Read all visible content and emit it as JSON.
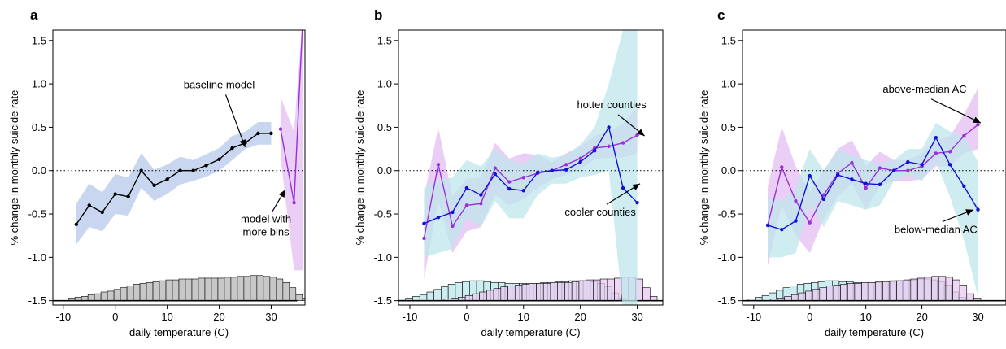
{
  "figure": {
    "colors": {
      "black": "#000000",
      "purple": "#9b30d9",
      "blue": "#1010d8",
      "blue_band": "#b7c8ea",
      "purple_band": "#e3bdf2",
      "cyan_band": "#bfe6ec",
      "gray_hist": "#c8c8c8",
      "cyan_hist": "#cdeef0",
      "purple_hist": "#e8c9f2",
      "overlap_hist": "#c9c8ec"
    }
  },
  "chart_data": [
    {
      "type": "line",
      "panel_label": "a",
      "xlabel": "daily temperature (C)",
      "ylabel": "% change in monthly suicide rate",
      "xlim": [
        -12,
        36.5
      ],
      "ylim": [
        -1.55,
        1.62
      ],
      "xticks": [
        "-10",
        "0",
        "10",
        "20",
        "30"
      ],
      "yticks": [
        "-1.5",
        "-1.0",
        "-0.5",
        "0.0",
        "0.5",
        "1.0",
        "1.5"
      ],
      "reference_line": 0,
      "series": [
        {
          "x": [
            -7.5,
            -5,
            -2.5,
            0,
            2.5,
            5,
            7.5,
            10,
            12.5,
            15,
            17.5,
            20,
            22.5,
            25,
            27.5,
            30
          ],
          "y": [
            -0.62,
            -0.4,
            -0.48,
            -0.27,
            -0.3,
            0.0,
            -0.17,
            -0.1,
            0.0,
            0.0,
            0.06,
            0.13,
            0.26,
            0.32,
            0.43,
            0.43
          ],
          "ci_lower": [
            -0.85,
            -0.65,
            -0.7,
            -0.5,
            -0.52,
            -0.2,
            -0.35,
            -0.27,
            -0.16,
            -0.12,
            -0.07,
            0.0,
            0.12,
            0.25,
            0.3,
            0.3
          ],
          "ci_upper": [
            -0.38,
            -0.15,
            -0.25,
            -0.04,
            -0.08,
            0.2,
            0.01,
            0.07,
            0.16,
            0.12,
            0.19,
            0.26,
            0.4,
            0.45,
            0.56,
            0.56
          ],
          "color": "black",
          "band_color": "blue_band"
        },
        {
          "x": [
            31.8,
            34.4,
            36.2
          ],
          "y": [
            0.48,
            -0.37,
            1.9
          ],
          "ci_lower": [
            0.15,
            -1.15,
            -1.15
          ],
          "ci_upper": [
            0.85,
            0.45,
            1.9
          ],
          "color": "purple",
          "band_color": "purple_band"
        }
      ],
      "histograms": [
        {
          "x_start": -9,
          "bin_width": 1.25,
          "heights": [
            0.03,
            0.04,
            0.05,
            0.07,
            0.08,
            0.1,
            0.11,
            0.13,
            0.15,
            0.17,
            0.19,
            0.2,
            0.21,
            0.22,
            0.23,
            0.24,
            0.24,
            0.25,
            0.25,
            0.25,
            0.26,
            0.26,
            0.26,
            0.26,
            0.27,
            0.27,
            0.28,
            0.28,
            0.29,
            0.29,
            0.28,
            0.27,
            0.25,
            0.21,
            0.15,
            0.07,
            0.03
          ],
          "fill": "gray_hist"
        }
      ],
      "hist_baseline_x_end": 35,
      "annotations": [
        {
          "text": "baseline model",
          "tx": 20,
          "ty": 0.95,
          "ax": 25,
          "ay": 0.27
        },
        {
          "text": "model with",
          "text2": "more bins",
          "tx": 29,
          "ty": -0.6,
          "ax": 32.7,
          "ay": -0.22
        }
      ]
    },
    {
      "type": "line",
      "panel_label": "b",
      "xlabel": "daily temperature (C)",
      "ylabel": "% change in monthly suicide rate",
      "xlim": [
        -12,
        34.5
      ],
      "ylim": [
        -1.55,
        1.62
      ],
      "xticks": [
        "-10",
        "0",
        "10",
        "20",
        "30"
      ],
      "yticks": [
        "-1.5",
        "-1.0",
        "-0.5",
        "0.0",
        "0.5",
        "1.0",
        "1.5"
      ],
      "reference_line": 0,
      "series": [
        {
          "x": [
            -7.5,
            -5,
            -2.5,
            0,
            2.5,
            5,
            7.5,
            10,
            12.5,
            15,
            17.5,
            20,
            22.5,
            25,
            27.5,
            30
          ],
          "y": [
            -0.78,
            0.07,
            -0.64,
            -0.4,
            -0.38,
            0.03,
            -0.13,
            -0.08,
            -0.03,
            0.0,
            0.07,
            0.14,
            0.26,
            0.28,
            0.32,
            0.41
          ],
          "ci_lower": [
            -1.25,
            -0.35,
            -0.95,
            -0.7,
            -0.65,
            -0.28,
            -0.4,
            -0.33,
            -0.2,
            -0.1,
            -0.05,
            0.02,
            0.13,
            0.15,
            0.15,
            0.2
          ],
          "ci_upper": [
            -0.3,
            0.5,
            -0.3,
            -0.1,
            -0.08,
            0.32,
            0.14,
            0.2,
            0.18,
            0.1,
            0.2,
            0.28,
            0.4,
            0.45,
            0.55,
            0.72
          ],
          "color": "purple",
          "band_color": "purple_band"
        },
        {
          "x": [
            -7.5,
            -5,
            -2.5,
            0,
            2.5,
            5,
            7.5,
            10,
            12.5,
            15,
            17.5,
            20,
            22.5,
            25,
            27.5,
            30
          ],
          "y": [
            -0.61,
            -0.54,
            -0.48,
            -0.2,
            -0.28,
            -0.04,
            -0.21,
            -0.23,
            -0.02,
            0.0,
            0.01,
            0.1,
            0.23,
            0.5,
            -0.2,
            -0.37
          ],
          "ci_lower": [
            -1.0,
            -0.95,
            -0.9,
            -0.55,
            -0.65,
            -0.35,
            -0.55,
            -0.55,
            -0.28,
            -0.15,
            -0.15,
            -0.08,
            -0.05,
            0.0,
            -1.6,
            -1.6
          ],
          "ci_upper": [
            -0.2,
            -0.1,
            -0.08,
            0.12,
            0.05,
            0.25,
            0.12,
            0.08,
            0.2,
            0.15,
            0.18,
            0.3,
            0.5,
            1.0,
            1.62,
            1.62
          ],
          "color": "blue",
          "band_color": "cyan_band"
        }
      ],
      "histograms": [
        {
          "x_start": -12,
          "bin_width": 1.25,
          "heights": [
            0.02,
            0.03,
            0.05,
            0.07,
            0.1,
            0.13,
            0.16,
            0.19,
            0.21,
            0.22,
            0.23,
            0.23,
            0.22,
            0.21,
            0.21,
            0.2,
            0.2,
            0.2,
            0.2,
            0.2,
            0.21,
            0.21,
            0.22,
            0.22,
            0.23,
            0.23,
            0.23,
            0.22,
            0.2,
            0.16,
            0.09,
            0.03
          ],
          "fill": "cyan_hist"
        },
        {
          "x_start": -4,
          "bin_width": 1.25,
          "heights": [
            0.02,
            0.03,
            0.04,
            0.06,
            0.08,
            0.1,
            0.12,
            0.14,
            0.16,
            0.17,
            0.18,
            0.19,
            0.2,
            0.2,
            0.2,
            0.21,
            0.21,
            0.21,
            0.22,
            0.23,
            0.24,
            0.24,
            0.25,
            0.25,
            0.26,
            0.27,
            0.27,
            0.25,
            0.15,
            0.05
          ],
          "fill": "purple_hist"
        }
      ],
      "hist_baseline_x_end": 34.5,
      "annotations": [
        {
          "text": "hotter counties",
          "tx": 25.5,
          "ty": 0.72,
          "ax": 31.3,
          "ay": 0.4
        },
        {
          "text": "cooler counties",
          "tx": 23.5,
          "ty": -0.52,
          "ax": 30.5,
          "ay": -0.15
        }
      ]
    },
    {
      "type": "line",
      "panel_label": "c",
      "xlabel": "daily temperature (C)",
      "ylabel": "% change in monthly suicide rate",
      "xlim": [
        -12,
        35
      ],
      "ylim": [
        -1.55,
        1.62
      ],
      "xticks": [
        "-10",
        "0",
        "10",
        "20",
        "30"
      ],
      "yticks": [
        "-1.5",
        "-1.0",
        "-0.5",
        "0.0",
        "0.5",
        "1.0",
        "1.5"
      ],
      "reference_line": 0,
      "series": [
        {
          "x": [
            -7.5,
            -5,
            -2.5,
            0,
            2.5,
            5,
            7.5,
            10,
            12.5,
            15,
            17.5,
            20,
            22.5,
            25,
            27.5,
            30
          ],
          "y": [
            -0.63,
            0.04,
            -0.35,
            -0.6,
            -0.28,
            -0.03,
            0.09,
            -0.2,
            0.03,
            0.0,
            0.0,
            0.05,
            0.2,
            0.22,
            0.4,
            0.53
          ],
          "ci_lower": [
            -1.1,
            -0.4,
            -0.75,
            -0.95,
            -0.55,
            -0.3,
            -0.15,
            -0.45,
            -0.18,
            -0.12,
            -0.12,
            -0.1,
            0.05,
            0.05,
            0.2,
            0.25
          ],
          "ci_upper": [
            -0.18,
            0.5,
            0.05,
            -0.25,
            0.0,
            0.25,
            0.35,
            0.05,
            0.22,
            0.12,
            0.12,
            0.2,
            0.35,
            0.4,
            0.65,
            0.95
          ],
          "color": "purple",
          "band_color": "purple_band"
        },
        {
          "x": [
            -7.5,
            -5,
            -2.5,
            0,
            2.5,
            5,
            7.5,
            10,
            12.5,
            15,
            17.5,
            20,
            22.5,
            25,
            27.5,
            30
          ],
          "y": [
            -0.63,
            -0.68,
            -0.58,
            -0.06,
            -0.33,
            -0.05,
            -0.1,
            -0.15,
            -0.16,
            0.0,
            0.1,
            0.07,
            0.38,
            0.07,
            -0.18,
            -0.45
          ],
          "ci_lower": [
            -1.0,
            -1.0,
            -0.95,
            -0.4,
            -0.65,
            -0.35,
            -0.4,
            -0.45,
            -0.4,
            -0.12,
            -0.05,
            -0.12,
            0.1,
            -0.3,
            -0.8,
            -1.45
          ],
          "ci_upper": [
            -0.3,
            -0.35,
            -0.2,
            0.25,
            0.0,
            0.25,
            0.18,
            0.12,
            0.08,
            0.12,
            0.25,
            0.25,
            0.55,
            0.45,
            0.4,
            0.1
          ],
          "color": "blue",
          "band_color": "cyan_band"
        }
      ],
      "histograms": [
        {
          "x_start": -11,
          "bin_width": 1.25,
          "heights": [
            0.02,
            0.04,
            0.06,
            0.09,
            0.12,
            0.15,
            0.17,
            0.19,
            0.2,
            0.21,
            0.22,
            0.23,
            0.23,
            0.22,
            0.22,
            0.21,
            0.21,
            0.21,
            0.21,
            0.22,
            0.22,
            0.23,
            0.23,
            0.24,
            0.25,
            0.25,
            0.24,
            0.22,
            0.18,
            0.1,
            0.04
          ],
          "fill": "cyan_hist"
        },
        {
          "x_start": -7,
          "bin_width": 1.25,
          "heights": [
            0.02,
            0.03,
            0.05,
            0.07,
            0.09,
            0.11,
            0.13,
            0.15,
            0.17,
            0.18,
            0.19,
            0.2,
            0.2,
            0.21,
            0.21,
            0.22,
            0.22,
            0.23,
            0.23,
            0.24,
            0.25,
            0.26,
            0.27,
            0.28,
            0.28,
            0.27,
            0.24,
            0.18,
            0.08,
            0.03
          ],
          "fill": "purple_hist"
        }
      ],
      "hist_baseline_x_end": 35,
      "annotations": [
        {
          "text": "above-median AC",
          "tx": 20.5,
          "ty": 0.9,
          "ax": 30.5,
          "ay": 0.55
        },
        {
          "text": "below-median AC",
          "tx": 22.5,
          "ty": -0.72,
          "ax": 29.2,
          "ay": -0.45
        }
      ]
    }
  ]
}
